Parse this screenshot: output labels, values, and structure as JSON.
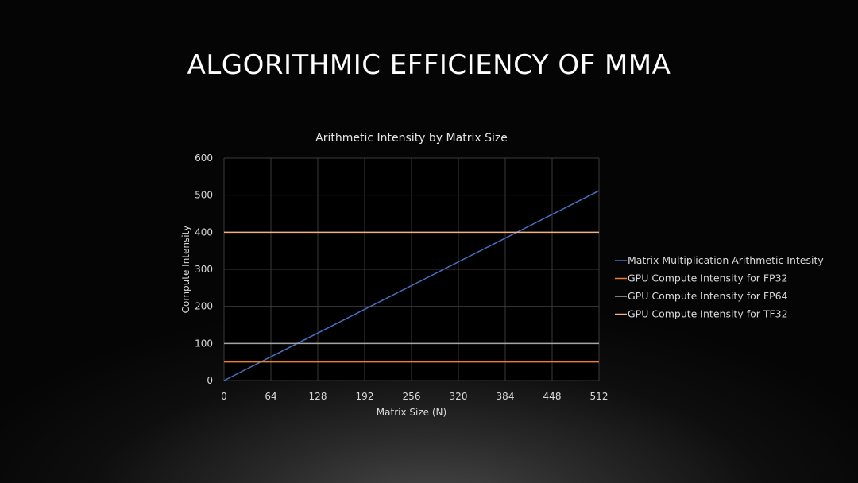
{
  "slide": {
    "title": "ALGORITHMIC EFFICIENCY OF MMA"
  },
  "chart_data": {
    "type": "line",
    "title": "Arithmetic Intensity by Matrix Size",
    "xlabel": "Matrix Size (N)",
    "ylabel": "Compute Intensity",
    "xlim": [
      0,
      512
    ],
    "ylim": [
      0,
      600
    ],
    "x_ticks": [
      0,
      64,
      128,
      192,
      256,
      320,
      384,
      448,
      512
    ],
    "y_ticks": [
      0,
      100,
      200,
      300,
      400,
      500,
      600
    ],
    "grid": true,
    "legend_position": "right",
    "background": "#000000",
    "series": [
      {
        "name": "Matrix Multiplication Arithmetic Intesity",
        "color": "#4472c4",
        "x": [
          0,
          512
        ],
        "y": [
          0,
          512
        ]
      },
      {
        "name": "GPU Compute Intensity for FP32",
        "color": "#ed7d31",
        "x": [
          0,
          512
        ],
        "y": [
          50,
          50
        ]
      },
      {
        "name": "GPU Compute Intensity for FP64",
        "color": "#a5a5a5",
        "x": [
          0,
          512
        ],
        "y": [
          100,
          100
        ]
      },
      {
        "name": "GPU Compute Intensity for TF32",
        "color": "#f4b183",
        "x": [
          0,
          512
        ],
        "y": [
          400,
          400
        ]
      }
    ]
  }
}
